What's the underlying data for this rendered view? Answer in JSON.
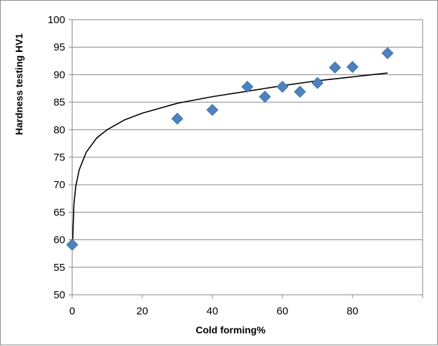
{
  "chart_data": {
    "type": "scatter",
    "title": "",
    "xlabel": "Cold forming%",
    "ylabel": "Hardness testing HV1",
    "xlim": [
      0,
      100
    ],
    "ylim": [
      50,
      100
    ],
    "x_ticks": [
      0,
      20,
      40,
      60,
      80
    ],
    "y_ticks": [
      50,
      55,
      60,
      65,
      70,
      75,
      80,
      85,
      90,
      95,
      100
    ],
    "grid": "horizontal",
    "legend": "none",
    "series": [
      {
        "marker": "diamond",
        "color": "#4f81bd",
        "x": [
          0,
          30,
          40,
          50,
          55,
          60,
          65,
          70,
          75,
          80,
          90
        ],
        "y": [
          59.1,
          82.0,
          83.6,
          87.8,
          86.0,
          87.8,
          86.9,
          88.5,
          91.3,
          91.4,
          93.9
        ]
      }
    ],
    "trendline": {
      "type": "logarithmic",
      "color": "#000000",
      "x": [
        0.1,
        0.5,
        1,
        2,
        4,
        7,
        10,
        15,
        20,
        30,
        40,
        50,
        60,
        70,
        80,
        90
      ],
      "y": [
        59.2,
        66.5,
        69.6,
        72.7,
        75.9,
        78.5,
        80.0,
        81.8,
        83.0,
        84.8,
        86.0,
        87.0,
        88.0,
        88.9,
        89.6,
        90.3
      ]
    }
  }
}
